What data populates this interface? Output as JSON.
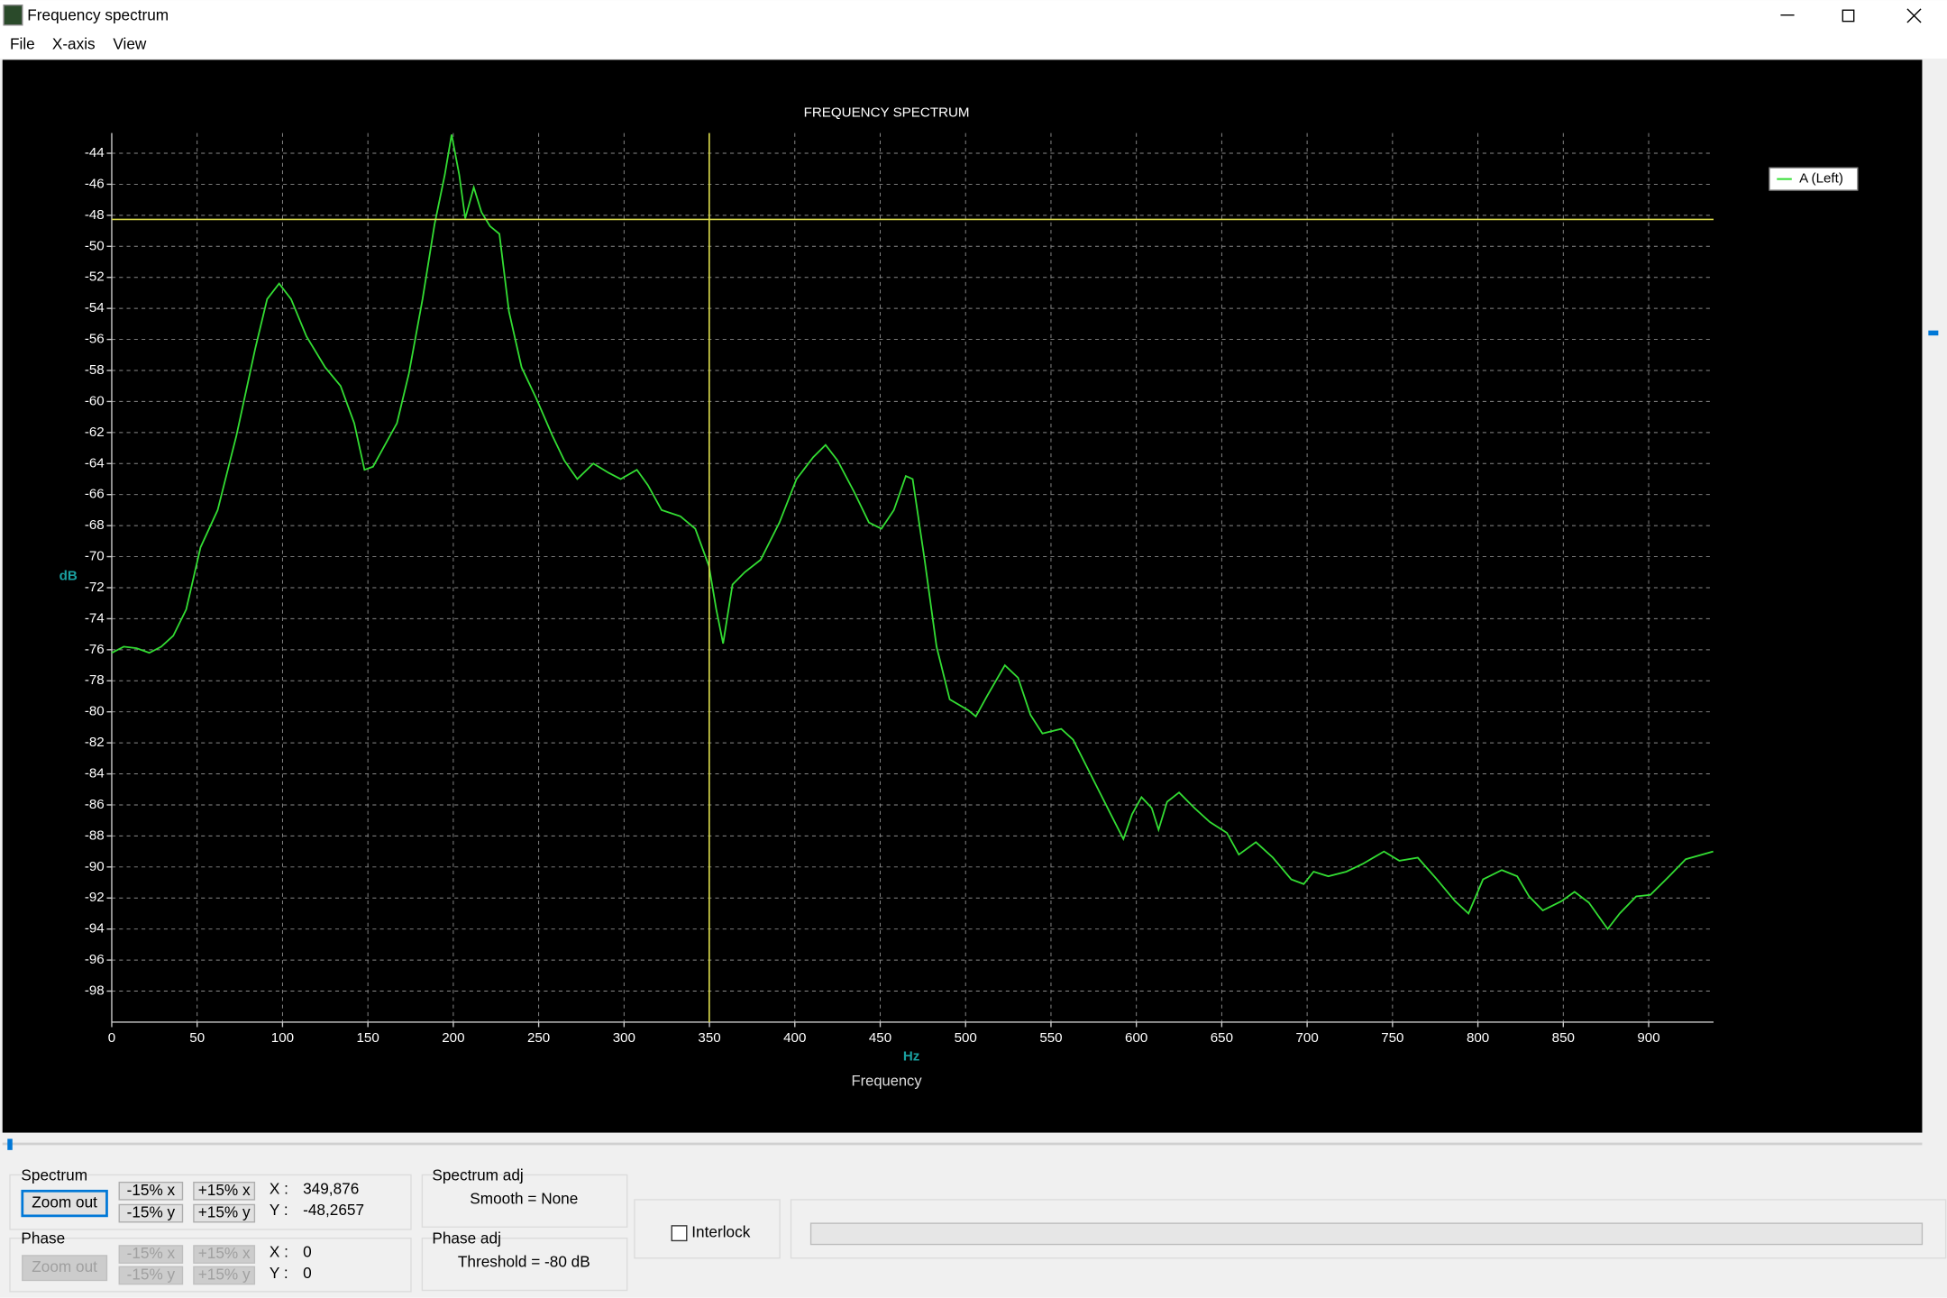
{
  "window": {
    "title": "Frequency spectrum"
  },
  "menu": [
    "File",
    "X-axis",
    "View"
  ],
  "chart_data": {
    "type": "line",
    "title": "FREQUENCY SPECTRUM",
    "xlabel": "Frequency",
    "xunit": "Hz",
    "ylabel": "dB",
    "x": [
      0,
      7,
      14.5,
      22,
      29,
      36,
      43.6,
      52,
      62,
      73,
      84,
      91,
      98,
      105,
      114,
      125,
      134,
      142,
      148,
      153,
      160,
      167,
      174,
      182,
      189,
      195,
      199,
      203.5,
      207,
      212,
      216.5,
      221.5,
      227,
      232.6,
      240,
      248.6,
      258,
      265,
      272.6,
      282,
      291,
      298,
      307.5,
      314,
      322,
      333,
      341.7,
      349.7,
      354,
      358,
      363.5,
      370.7,
      380,
      391,
      401,
      410.7,
      418,
      425,
      434.6,
      443.4,
      450.7,
      458,
      465,
      469,
      476,
      483,
      490.7,
      501.6,
      506,
      512.5,
      523,
      530.7,
      538,
      545,
      556,
      563,
      574,
      585,
      592.4,
      597.5,
      603,
      609,
      613,
      618,
      625,
      634,
      643,
      653,
      660,
      670,
      680,
      690.7,
      698,
      703.8,
      712.4,
      723,
      732.6,
      745,
      754,
      764.8,
      776,
      786.6,
      794.5,
      803,
      814,
      823,
      830,
      838,
      849,
      856.6,
      865,
      876,
      883,
      892.7,
      901,
      912,
      921.7,
      937.8
    ],
    "series": [
      {
        "name": "A (Left)",
        "color": "#33dd33",
        "values": [
          -76.2,
          -75.8,
          -75.9,
          -76.2,
          -75.8,
          -75.1,
          -73.4,
          -69.4,
          -67,
          -62.2,
          -56.6,
          -53.4,
          -52.4,
          -53.4,
          -55.8,
          -57.8,
          -59,
          -61.4,
          -64.4,
          -64.2,
          -62.8,
          -61.4,
          -58.2,
          -53.4,
          -48.6,
          -45.4,
          -42.8,
          -45.4,
          -48.2,
          -46.2,
          -47.8,
          -48.7,
          -49.2,
          -54.2,
          -57.8,
          -59.8,
          -62.2,
          -63.8,
          -65,
          -64,
          -64.6,
          -65,
          -64.4,
          -65.4,
          -67,
          -67.4,
          -68.2,
          -70.6,
          -73.4,
          -75.6,
          -71.8,
          -71,
          -70.2,
          -67.8,
          -65,
          -63.6,
          -62.8,
          -63.8,
          -65.8,
          -67.8,
          -68.2,
          -67,
          -64.8,
          -65,
          -70.2,
          -75.8,
          -79.2,
          -79.9,
          -80.3,
          -79,
          -77,
          -77.8,
          -80.2,
          -81.4,
          -81.1,
          -81.8,
          -84.2,
          -86.6,
          -88.2,
          -86.6,
          -85.5,
          -86.2,
          -87.6,
          -85.8,
          -85.2,
          -86.2,
          -87.1,
          -87.8,
          -89.2,
          -88.4,
          -89.4,
          -90.8,
          -91.1,
          -90.3,
          -90.6,
          -90.3,
          -89.8,
          -89,
          -89.6,
          -89.4,
          -90.8,
          -92.2,
          -93,
          -90.8,
          -90.2,
          -90.6,
          -91.9,
          -92.8,
          -92.2,
          -91.6,
          -92.3,
          -94,
          -93,
          -91.9,
          -91.8,
          -90.6,
          -89.5,
          -89
        ]
      }
    ],
    "xlim": [
      0,
      938
    ],
    "ylim": [
      -100,
      -42.7
    ],
    "xticks": [
      0,
      50,
      100,
      150,
      200,
      250,
      300,
      350,
      400,
      450,
      500,
      550,
      600,
      650,
      700,
      750,
      800,
      850,
      900
    ],
    "yticks": [
      -44,
      -46,
      -48,
      -50,
      -52,
      -54,
      -56,
      -58,
      -60,
      -62,
      -64,
      -66,
      -68,
      -70,
      -72,
      -74,
      -76,
      -78,
      -80,
      -82,
      -84,
      -86,
      -88,
      -90,
      -92,
      -94,
      -96,
      -98
    ],
    "grid": true,
    "legend": "upper right",
    "cursor": {
      "x": 349.876,
      "y": -48.2657,
      "color": "#d8d84a"
    }
  },
  "spectrum_panel": {
    "title": "Spectrum",
    "zoom": "Zoom out",
    "buttons": [
      "-15% x",
      "+15% x",
      "-15% y",
      "+15% y"
    ],
    "x_label": "X :",
    "y_label": "Y :",
    "x": "349,876",
    "y": "-48,2657"
  },
  "phase_panel": {
    "title": "Phase",
    "zoom": "Zoom out",
    "buttons": [
      "-15% x",
      "+15% x",
      "-15% y",
      "+15% y"
    ],
    "x_label": "X :",
    "y_label": "Y :",
    "x": 0,
    "y": 0
  },
  "spectrum_adj": {
    "title": "Spectrum adj",
    "text": "Smooth = None"
  },
  "phase_adj": {
    "title": "Phase adj",
    "text": "Threshold = -80 dB"
  },
  "interlock": "Interlock"
}
